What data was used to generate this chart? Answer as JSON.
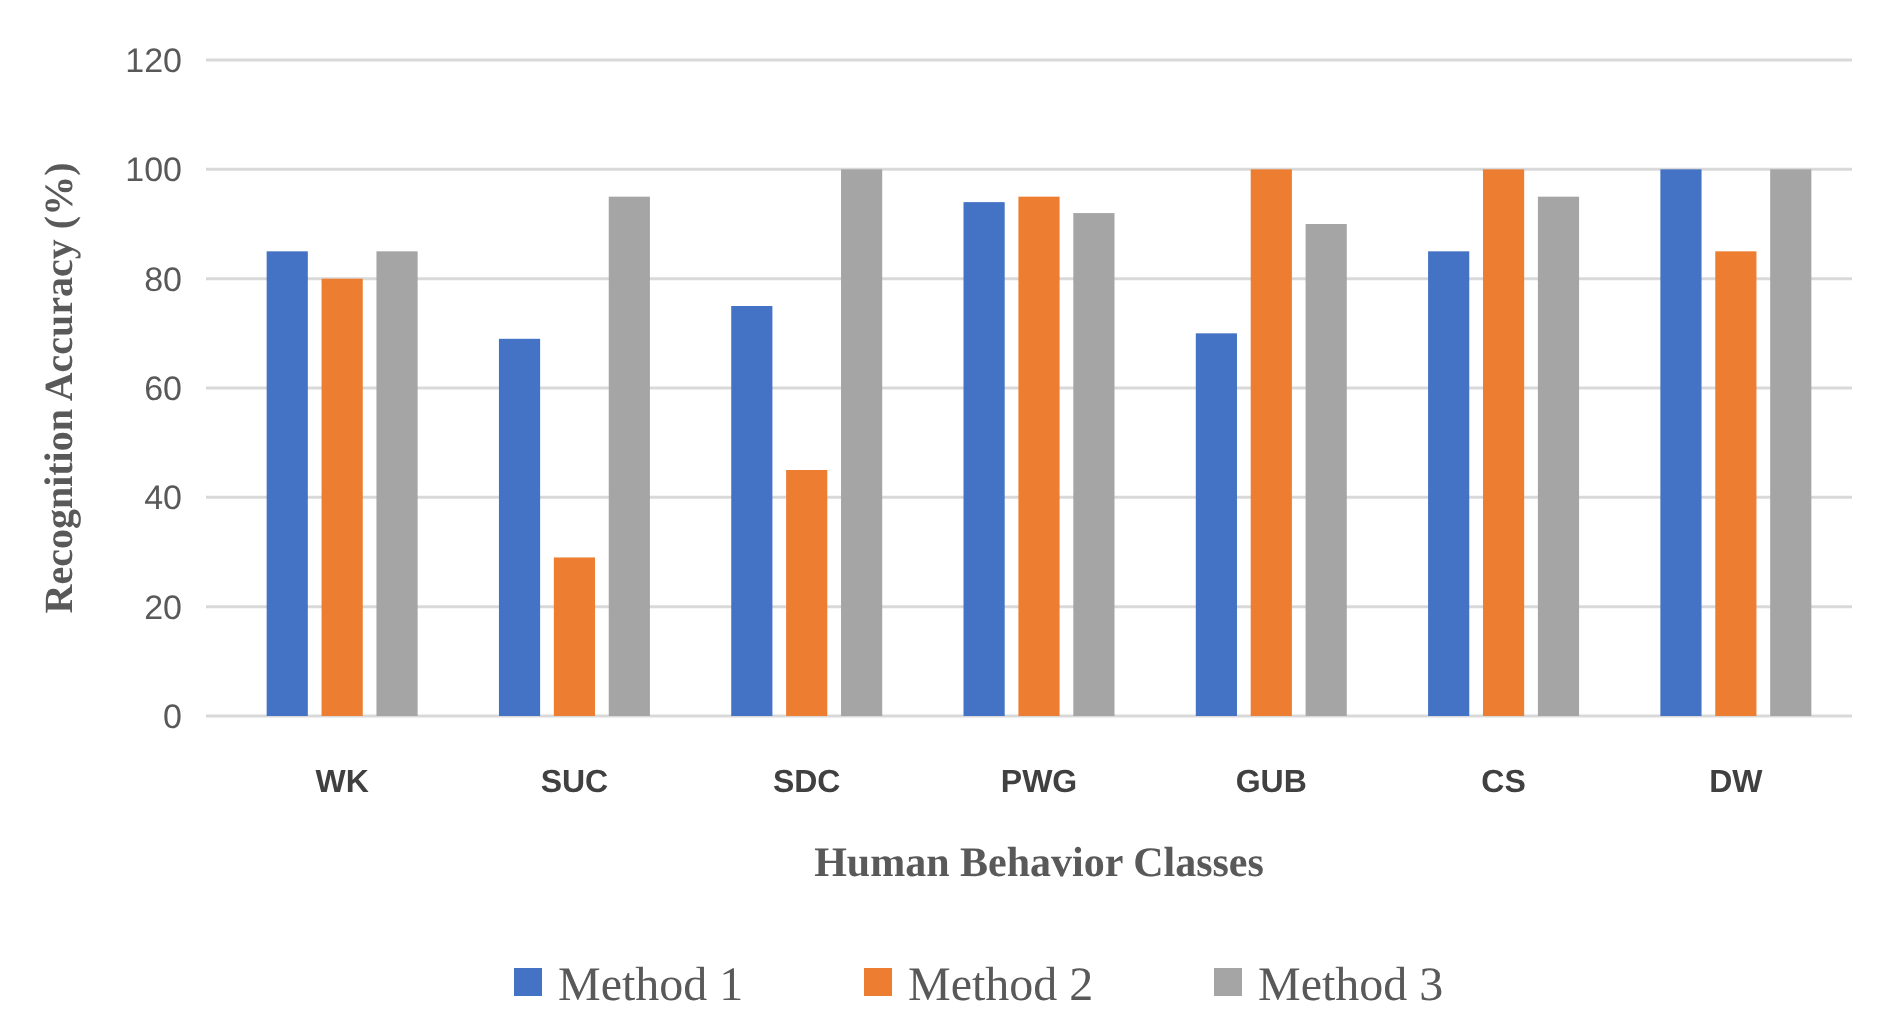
{
  "chart_data": {
    "type": "bar",
    "xlabel": "Human Behavior Classes",
    "ylabel": "Recognition Accuracy (%)",
    "categories": [
      "WK",
      "SUC",
      "SDC",
      "PWG",
      "GUB",
      "CS",
      "DW"
    ],
    "series": [
      {
        "name": "Method 1",
        "color": "#4472c4",
        "values": [
          85,
          69,
          75,
          94,
          70,
          85,
          100
        ]
      },
      {
        "name": "Method 2",
        "color": "#ed7d31",
        "values": [
          80,
          29,
          45,
          95,
          100,
          100,
          85
        ]
      },
      {
        "name": "Method 3",
        "color": "#a5a5a5",
        "values": [
          85,
          95,
          100,
          92,
          90,
          95,
          100
        ]
      }
    ],
    "ylim": [
      0,
      120
    ],
    "yticks": [
      0,
      20,
      40,
      60,
      80,
      100,
      120
    ],
    "grid": "y",
    "legend": "bottom"
  }
}
